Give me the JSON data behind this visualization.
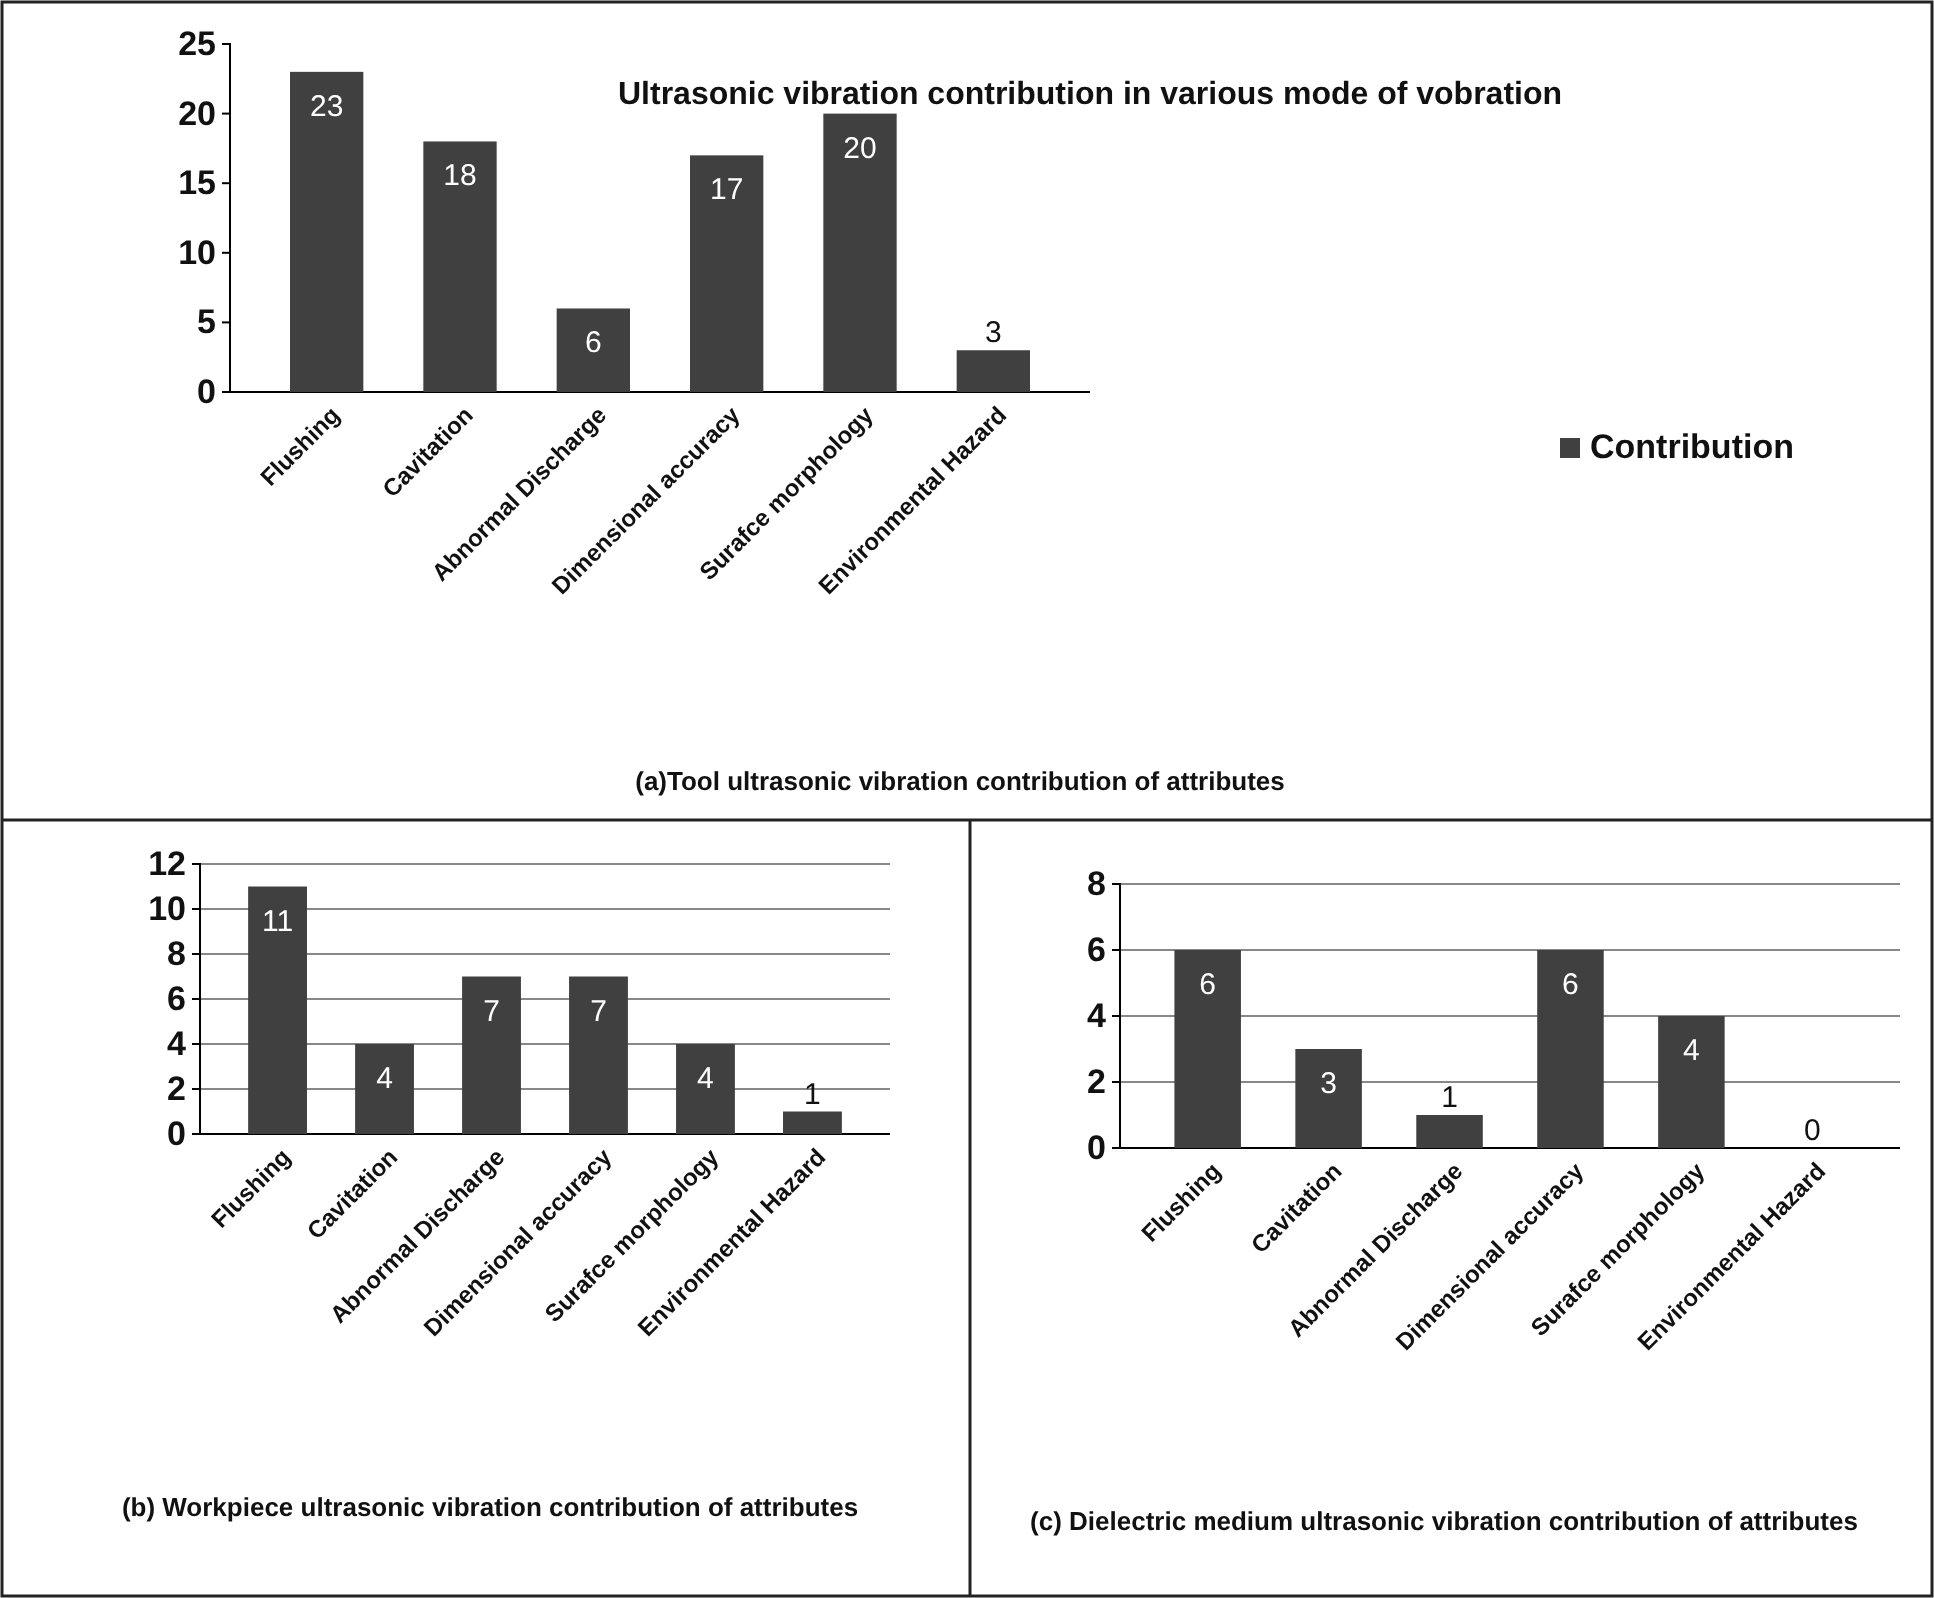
{
  "chart_data": [
    {
      "type": "bar",
      "title": "Ultrasonic vibration contribution in various mode of vobration",
      "categories": [
        "Flushing",
        "Cavitation",
        "Abnormal Discharge",
        "Dimensional accuracy",
        "Surafce morphology",
        "Environmental Hazard"
      ],
      "series": [
        {
          "name": "Contribution",
          "color": "#404040",
          "values": [
            23,
            18,
            6,
            17,
            20,
            3
          ]
        }
      ],
      "ylim": [
        0,
        25
      ],
      "yticks": [
        0,
        5,
        10,
        15,
        20,
        25
      ],
      "grid": false,
      "legend": "right",
      "data_labels": true,
      "annotations": [
        "(a)Tool ultrasonic vibration contribution of attributes"
      ]
    },
    {
      "type": "bar",
      "categories": [
        "Flushing",
        "Cavitation",
        "Abnormal Discharge",
        "Dimensional accuracy",
        "Surafce morphology",
        "Environmental Hazard"
      ],
      "values": [
        11,
        4,
        7,
        7,
        4,
        1
      ],
      "color": "#404040",
      "ylim": [
        0,
        12
      ],
      "yticks": [
        0,
        2,
        4,
        6,
        8,
        10,
        12
      ],
      "grid": "y",
      "data_labels": true,
      "annotations": [
        "(b) Workpiece ultrasonic vibration contribution of attributes"
      ]
    },
    {
      "type": "bar",
      "categories": [
        "Flushing",
        "Cavitation",
        "Abnormal Discharge",
        "Dimensional accuracy",
        "Surafce morphology",
        "Environmental Hazard"
      ],
      "values": [
        6,
        3,
        1,
        6,
        4,
        0
      ],
      "color": "#404040",
      "ylim": [
        0,
        8
      ],
      "yticks": [
        0,
        2,
        4,
        6,
        8
      ],
      "grid": "y",
      "data_labels": true,
      "annotations": [
        "(c) Dielectric medium ultrasonic vibration contribution of attributes"
      ]
    }
  ]
}
